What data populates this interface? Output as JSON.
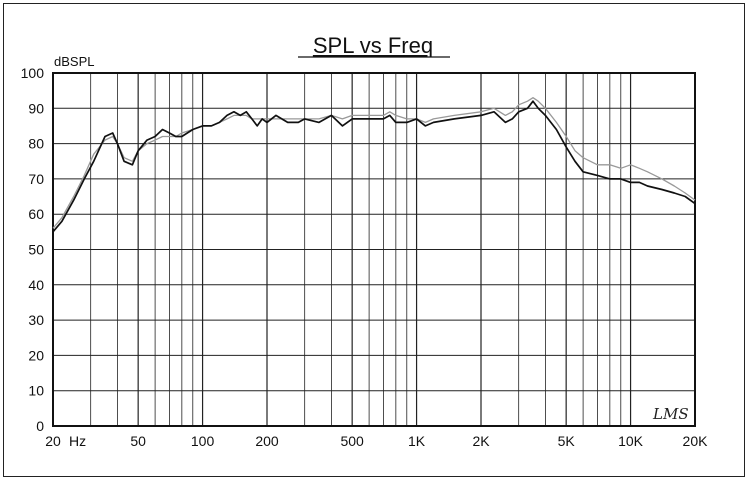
{
  "chart_data": {
    "type": "line",
    "title": "SPL vs Freq",
    "ylabel": "dBSPL",
    "xlabel": "",
    "x_scale": "log",
    "xlim": [
      20,
      20000
    ],
    "ylim": [
      0,
      100
    ],
    "y_ticks": [
      0,
      10,
      20,
      30,
      40,
      50,
      60,
      70,
      80,
      90,
      100
    ],
    "x_ticks": [
      {
        "value": 20,
        "label": "20"
      },
      {
        "value": 50,
        "label": "50"
      },
      {
        "value": 100,
        "label": "100"
      },
      {
        "value": 200,
        "label": "200"
      },
      {
        "value": 500,
        "label": "500"
      },
      {
        "value": 1000,
        "label": "1K"
      },
      {
        "value": 2000,
        "label": "2K"
      },
      {
        "value": 5000,
        "label": "5K"
      },
      {
        "value": 10000,
        "label": "10K"
      },
      {
        "value": 20000,
        "label": "20K"
      }
    ],
    "x_unit_label": "Hz",
    "grid": true,
    "signature": "LMS",
    "series": [
      {
        "color": "#111111",
        "x": [
          20,
          22,
          25,
          28,
          31,
          35,
          38,
          40,
          43,
          47,
          50,
          55,
          60,
          65,
          70,
          75,
          80,
          90,
          100,
          110,
          120,
          130,
          140,
          150,
          160,
          170,
          180,
          190,
          200,
          220,
          250,
          280,
          300,
          350,
          400,
          450,
          500,
          550,
          600,
          650,
          700,
          750,
          800,
          900,
          1000,
          1100,
          1200,
          1500,
          2000,
          2300,
          2600,
          2800,
          3000,
          3300,
          3500,
          3700,
          4000,
          4500,
          5000,
          5500,
          6000,
          7000,
          8000,
          9000,
          10000,
          11000,
          12000,
          14000,
          16000,
          18000,
          20000
        ],
        "y": [
          55,
          58,
          64,
          70,
          75,
          82,
          83,
          80,
          75,
          74,
          78,
          81,
          82,
          84,
          83,
          82,
          82,
          84,
          85,
          85,
          86,
          88,
          89,
          88,
          89,
          87,
          85,
          87,
          86,
          88,
          86,
          86,
          87,
          86,
          88,
          85,
          87,
          87,
          87,
          87,
          87,
          88,
          86,
          86,
          87,
          85,
          86,
          87,
          88,
          89,
          86,
          87,
          89,
          90,
          92,
          90,
          88,
          84,
          79,
          75,
          72,
          71,
          70,
          70,
          69,
          69,
          68,
          67,
          66,
          65,
          63
        ]
      },
      {
        "color": "#999999",
        "x": [
          20,
          22,
          25,
          28,
          31,
          35,
          38,
          40,
          43,
          47,
          50,
          55,
          60,
          65,
          70,
          75,
          80,
          90,
          100,
          110,
          120,
          130,
          140,
          150,
          160,
          170,
          180,
          190,
          200,
          220,
          250,
          280,
          300,
          350,
          400,
          450,
          500,
          550,
          600,
          650,
          700,
          750,
          800,
          900,
          1000,
          1100,
          1200,
          1500,
          2000,
          2300,
          2600,
          2800,
          3000,
          3300,
          3500,
          3700,
          4000,
          4500,
          5000,
          5500,
          6000,
          7000,
          8000,
          9000,
          10000,
          11000,
          12000,
          14000,
          16000,
          18000,
          20000
        ],
        "y": [
          56,
          59,
          65,
          71,
          77,
          81,
          82,
          80,
          76,
          75,
          78,
          80,
          81,
          82,
          82,
          82,
          83,
          84,
          85,
          85,
          86,
          87,
          88,
          88,
          88,
          87,
          87,
          87,
          87,
          87,
          87,
          87,
          87,
          87,
          88,
          87,
          88,
          88,
          88,
          88,
          88,
          89,
          88,
          87,
          87,
          86,
          87,
          88,
          89,
          90,
          88,
          89,
          91,
          92,
          93,
          92,
          90,
          86,
          82,
          78,
          76,
          74,
          74,
          73,
          74,
          73,
          72,
          70,
          68,
          66,
          64
        ]
      }
    ]
  }
}
